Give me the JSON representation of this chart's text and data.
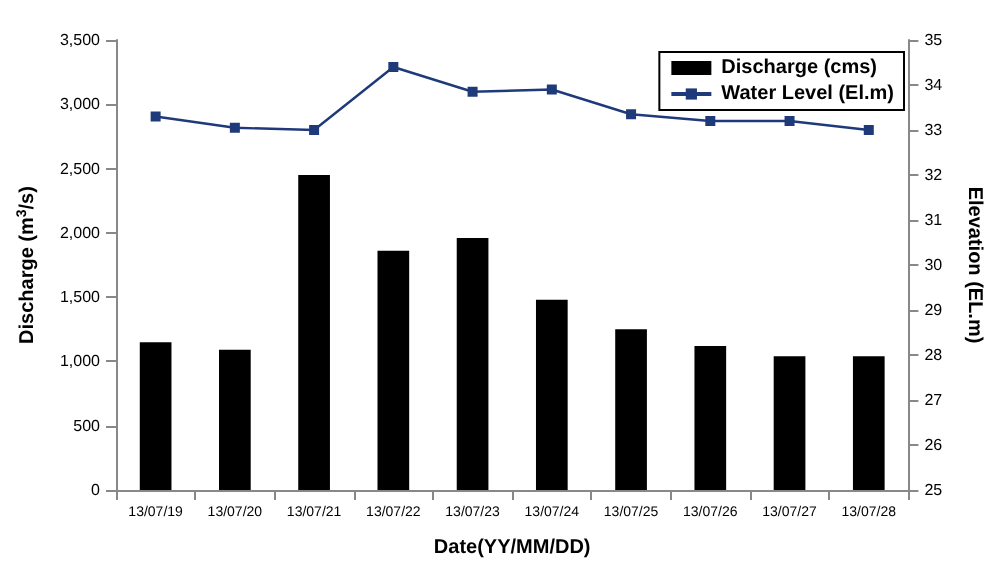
{
  "chart_data": {
    "type": "bar",
    "xlabel": "Date(YY/MM/DD)",
    "ylabel": "Discharge (m$^{3}$/s)",
    "y2label": "Elevation (EL.m)",
    "categories": [
      "13/07/19",
      "13/07/20",
      "13/07/21",
      "13/07/22",
      "13/07/23",
      "13/07/24",
      "13/07/25",
      "13/07/26",
      "13/07/27",
      "13/07/28"
    ],
    "series": [
      {
        "name": "Discharge (cms)",
        "color": "#000000",
        "values": [
          1150,
          1090,
          2450,
          1860,
          1960,
          1480,
          1250,
          1120,
          1040,
          1040
        ]
      },
      {
        "name": "Water Level (El.m)",
        "type": "line",
        "axis": "y2",
        "color": "#1f3a7a",
        "marker": "square",
        "values": [
          33.3,
          33.05,
          33.0,
          34.4,
          33.85,
          33.9,
          33.35,
          33.2,
          33.2,
          33.0
        ]
      }
    ],
    "ylim": [
      0,
      3500
    ],
    "yticks": [
      {
        "value": 0,
        "label": "0"
      },
      {
        "value": 500,
        "label": "500"
      },
      {
        "value": 1000,
        "label": "1,000"
      },
      {
        "value": 1500,
        "label": "1,500"
      },
      {
        "value": 2000,
        "label": "2,000"
      },
      {
        "value": 2500,
        "label": "2,500"
      },
      {
        "value": 3000,
        "label": "3,000"
      },
      {
        "value": 3500,
        "label": "3,500"
      }
    ],
    "y2lim": [
      25,
      35
    ],
    "y2ticks": [
      25,
      26,
      27,
      28,
      29,
      30,
      31,
      32,
      33,
      34,
      35
    ],
    "grid": false,
    "legend": "top right"
  }
}
